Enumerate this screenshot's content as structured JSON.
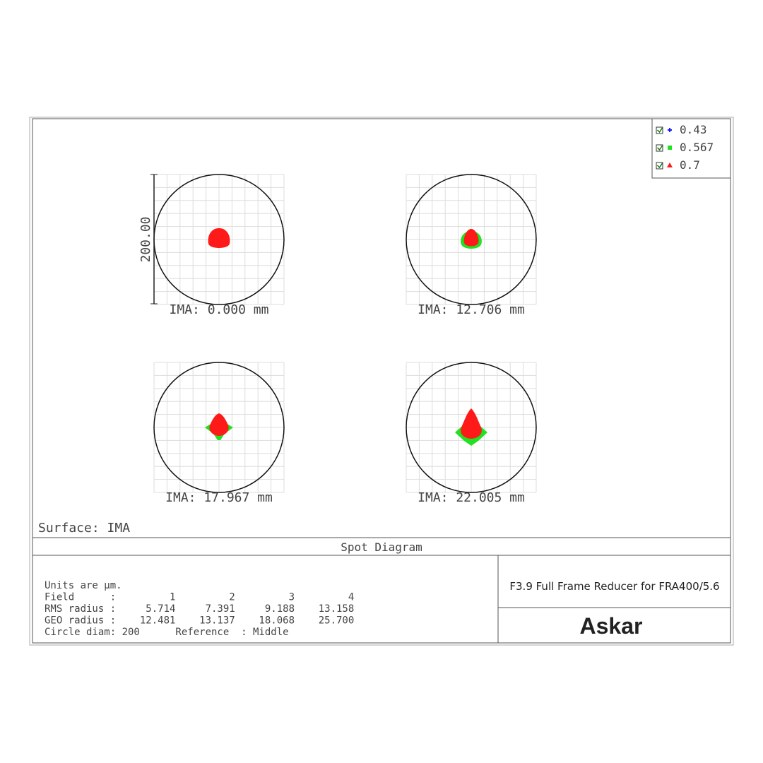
{
  "legend": [
    {
      "label": "0.43",
      "color": "#1a1aff"
    },
    {
      "label": "0.567",
      "color": "#22e022"
    },
    {
      "label": "0.7",
      "color": "#ff1a1a"
    }
  ],
  "scale_label": "200.00",
  "panels": [
    {
      "label": "IMA: 0.000 mm"
    },
    {
      "label": "IMA: 12.706 mm"
    },
    {
      "label": "IMA: 17.967 mm"
    },
    {
      "label": "IMA: 22.005 mm"
    }
  ],
  "surface": "Surface: IMA",
  "title": "Spot Diagram",
  "notes": [
    "Units are µm.",
    "Field      :         1         2         3         4",
    "RMS radius :     5.714     7.391     9.188    13.158",
    "GEO radius :    12.481    13.137    18.068    25.700",
    "Circle diam: 200      Reference  : Middle"
  ],
  "product": "F3.9 Full Frame Reducer for FRA400/5.6",
  "brand": "Askar"
}
